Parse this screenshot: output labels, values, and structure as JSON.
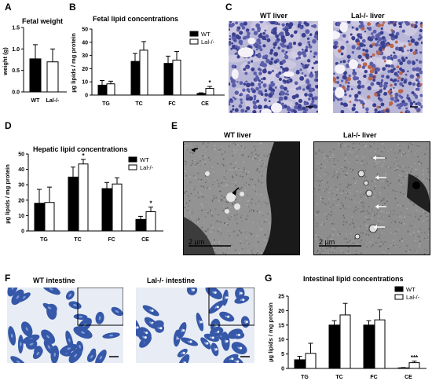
{
  "panels": {
    "A": {
      "label": "A",
      "title": "Fetal weight"
    },
    "B": {
      "label": "B",
      "title": "Fetal lipid concentrations"
    },
    "C": {
      "label": "C",
      "title_left": "WT liver",
      "title_right": "Lal-/- liver"
    },
    "D": {
      "label": "D",
      "title": "Hepatic lipid concentrations"
    },
    "E": {
      "label": "E",
      "title_left": "WT liver",
      "title_right": "Lal-/- liver",
      "scale_left": "2 µm",
      "scale_right": "2 µm"
    },
    "F": {
      "label": "F",
      "title_left": "WT intestine",
      "title_right": "Lal-/- intestine"
    },
    "G": {
      "label": "G",
      "title": "Intestinal  lipid concentrations"
    }
  },
  "colors": {
    "wt": "#000000",
    "lal": "#ffffff",
    "liver_stain": "#7a7fc0",
    "intestine_stain": "#3e62b0",
    "em_gray": "#8a8a8a"
  },
  "chart_data": [
    {
      "id": "A",
      "type": "bar",
      "title": "Fetal weight",
      "categories": [
        "WT",
        "Lal-/-"
      ],
      "values": [
        0.77,
        0.7
      ],
      "errors": [
        0.33,
        0.3
      ],
      "colors": [
        "#000000",
        "#ffffff"
      ],
      "ylabel": "weight (g)",
      "ylim": [
        0,
        1.5
      ],
      "yticks": [
        "0.0",
        "0.5",
        "1.0",
        "1.5"
      ],
      "ytick_values": [
        0,
        0.5,
        1.0,
        1.5
      ],
      "grid": false
    },
    {
      "id": "B",
      "type": "bar",
      "title": "Fetal lipid concentrations",
      "categories": [
        "TG",
        "TC",
        "FC",
        "CE"
      ],
      "series": [
        {
          "name": "WT",
          "values": [
            7.5,
            25.5,
            24,
            1.2
          ],
          "errors": [
            3.5,
            6,
            5.5,
            0.5
          ]
        },
        {
          "name": "Lal-/-",
          "values": [
            8.5,
            34,
            26.5,
            5
          ],
          "errors": [
            2,
            6.5,
            6.5,
            1.5
          ]
        }
      ],
      "annotations": [
        "",
        "",
        "",
        "*"
      ],
      "ylabel": "µg lipids / mg protein",
      "ylim": [
        0,
        50
      ],
      "yticks": [
        "0",
        "10",
        "20",
        "30",
        "40",
        "50"
      ],
      "ytick_values": [
        0,
        10,
        20,
        30,
        40,
        50
      ],
      "legend": "top-right",
      "grid": false
    },
    {
      "id": "D",
      "type": "bar",
      "title": "Hepatic lipid concentrations",
      "categories": [
        "TG",
        "TC",
        "FC",
        "CE"
      ],
      "series": [
        {
          "name": "WT",
          "values": [
            18,
            35,
            27.5,
            7.5
          ],
          "errors": [
            9,
            6.5,
            4,
            2
          ]
        },
        {
          "name": "Lal-/-",
          "values": [
            18.5,
            43.5,
            30.5,
            12.5
          ],
          "errors": [
            10,
            3,
            4,
            3
          ]
        }
      ],
      "annotations": [
        "",
        "*",
        "",
        "*"
      ],
      "ylabel": "µg lipids / mg protein",
      "ylim": [
        0,
        50
      ],
      "yticks": [
        "0",
        "10",
        "20",
        "30",
        "40",
        "50"
      ],
      "ytick_values": [
        0,
        10,
        20,
        30,
        40,
        50
      ],
      "legend": "top-right",
      "grid": false
    },
    {
      "id": "G",
      "type": "bar",
      "title": "Intestinal  lipid concentrations",
      "categories": [
        "TG",
        "TC",
        "FC",
        "CE"
      ],
      "series": [
        {
          "name": "WT",
          "values": [
            3,
            15,
            15,
            0.2
          ],
          "errors": [
            1.2,
            1.5,
            1.5,
            0.1
          ]
        },
        {
          "name": "Lal-/-",
          "values": [
            5.2,
            18.5,
            16.8,
            2
          ],
          "errors": [
            3.5,
            4,
            3.5,
            0.5
          ]
        }
      ],
      "annotations": [
        "",
        "",
        "",
        "***"
      ],
      "ylabel": "µg lipids / mg protein",
      "ylim": [
        0,
        25
      ],
      "yticks": [
        "0",
        "5",
        "10",
        "15",
        "20",
        "25"
      ],
      "ytick_values": [
        0,
        5,
        10,
        15,
        20,
        25
      ],
      "legend": "top-right",
      "grid": false
    }
  ]
}
